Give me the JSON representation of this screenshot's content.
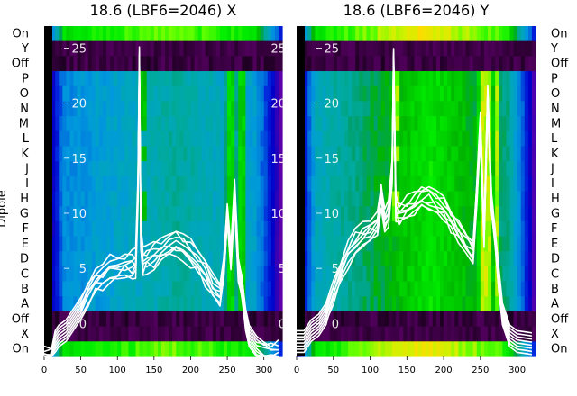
{
  "chart_data": [
    {
      "type": "heatmap",
      "title": "18.6 (LBF6=2046) X",
      "ylabel": "Dipole",
      "xlabel": "",
      "xlim": [
        0,
        325
      ],
      "xticks": [
        0,
        50,
        100,
        150,
        200,
        250,
        300
      ],
      "overlay_ylim": [
        -3,
        27
      ],
      "overlay_yticks": [
        0,
        5,
        10,
        15,
        20,
        25
      ],
      "row_labels": [
        "On",
        "X",
        "Off",
        "A",
        "B",
        "C",
        "D",
        "E",
        "F",
        "G",
        "H",
        "I",
        "J",
        "K",
        "L",
        "M",
        "N",
        "O",
        "P",
        "Off",
        "Y",
        "On"
      ],
      "colormap": "nipy_spectral",
      "overlay_series": {
        "color": "#ffffff",
        "count": 8,
        "x": [
          0,
          10,
          15,
          20,
          30,
          40,
          50,
          60,
          70,
          80,
          90,
          100,
          110,
          120,
          125,
          128,
          130,
          132,
          135,
          140,
          150,
          160,
          170,
          180,
          190,
          200,
          210,
          220,
          230,
          240,
          245,
          250,
          255,
          260,
          265,
          270,
          275,
          280,
          290,
          300,
          310,
          320
        ],
        "y": [
          -3,
          -3,
          -1.5,
          -1,
          -0.5,
          0.5,
          1.5,
          3,
          4,
          4.5,
          5,
          5.2,
          5.4,
          5.5,
          5.6,
          12,
          24,
          8,
          5.8,
          6,
          6.3,
          6.8,
          7.2,
          7.5,
          7,
          6.5,
          5.8,
          4.8,
          3.5,
          2.8,
          5,
          10,
          6,
          12,
          5,
          3.5,
          0.5,
          -1,
          -2,
          -2.5,
          -2.6,
          -2.7
        ]
      }
    },
    {
      "type": "heatmap",
      "title": "18.6 (LBF6=2046) Y",
      "ylabel": "",
      "xlabel": "",
      "xlim": [
        0,
        325
      ],
      "xticks": [
        0,
        50,
        100,
        150,
        200,
        250,
        300
      ],
      "overlay_ylim": [
        -3,
        27
      ],
      "overlay_yticks": [
        0,
        5,
        10,
        15,
        20,
        25
      ],
      "row_labels": [
        "On",
        "X",
        "Off",
        "A",
        "B",
        "C",
        "D",
        "E",
        "F",
        "G",
        "H",
        "I",
        "J",
        "K",
        "L",
        "M",
        "N",
        "O",
        "P",
        "Off",
        "Y",
        "On"
      ],
      "colormap": "nipy_spectral",
      "overlay_series": {
        "color": "#ffffff",
        "count": 8,
        "x": [
          0,
          10,
          15,
          20,
          30,
          40,
          50,
          60,
          70,
          80,
          90,
          100,
          110,
          115,
          120,
          125,
          130,
          132,
          135,
          140,
          150,
          160,
          170,
          180,
          190,
          200,
          210,
          220,
          230,
          240,
          245,
          250,
          255,
          260,
          265,
          270,
          275,
          280,
          290,
          300,
          310,
          320
        ],
        "y": [
          -1.5,
          -1.5,
          -1,
          -0.5,
          0,
          1,
          3,
          5,
          6.5,
          7.5,
          8,
          8.5,
          9,
          12,
          9.5,
          10,
          14,
          24,
          10.5,
          10,
          10.5,
          11,
          11.5,
          11.5,
          11,
          10.5,
          9.5,
          8.5,
          7.5,
          6.5,
          12,
          18,
          8,
          21,
          11,
          8,
          4,
          1,
          -1,
          -1.5,
          -1.6,
          -1.7
        ]
      }
    }
  ]
}
